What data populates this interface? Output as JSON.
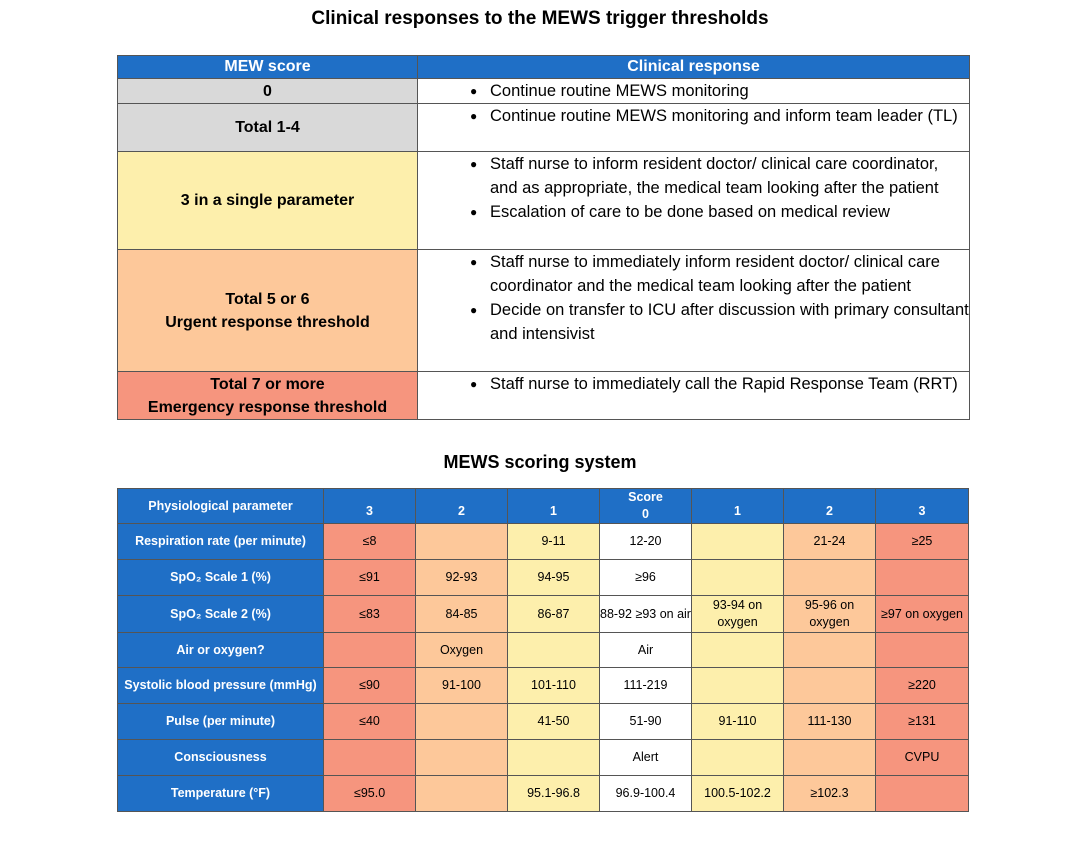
{
  "title": "Clinical responses to the MEWS trigger thresholds",
  "response_table": {
    "headers": {
      "score": "MEW score",
      "response": "Clinical response"
    },
    "rows": [
      {
        "score": [
          "0"
        ],
        "color": "#d9d9d9",
        "responses": [
          "Continue routine MEWS monitoring"
        ]
      },
      {
        "score": [
          "Total 1-4"
        ],
        "color": "#d9d9d9",
        "responses": [
          "Continue routine MEWS monitoring and inform team leader (TL)"
        ]
      },
      {
        "score": [
          "3 in a single parameter"
        ],
        "color": "#fdefac",
        "responses": [
          "Staff nurse to inform resident doctor/ clinical care coordinator, and as appropriate, the medical team looking after the patient",
          "Escalation of care to be done based on medical review"
        ]
      },
      {
        "score": [
          "Total 5 or 6",
          "Urgent response threshold"
        ],
        "color": "#fdc89a",
        "responses": [
          "Staff nurse to immediately inform resident doctor/ clinical care coordinator and the medical team looking after the patient",
          "Decide on transfer to ICU after discussion with primary consultant and intensivist"
        ]
      },
      {
        "score": [
          "Total 7 or more",
          "Emergency response threshold"
        ],
        "color": "#f6957e",
        "responses": [
          "Staff nurse to immediately call the Rapid Response Team (RRT)"
        ]
      }
    ]
  },
  "scoring_title": "MEWS scoring system",
  "scoring_table": {
    "param_header": "Physiological parameter",
    "score_label": "Score",
    "columns": [
      "3",
      "2",
      "1",
      "0",
      "1",
      "2",
      "3"
    ],
    "rows": [
      {
        "param": "Respiration rate (per minute)",
        "cells": [
          "≤8",
          "",
          "9-11",
          "12-20",
          "",
          "21-24",
          "≥25"
        ]
      },
      {
        "param": "SpO₂ Scale 1 (%)",
        "cells": [
          "≤91",
          "92-93",
          "94-95",
          "≥96",
          "",
          "",
          ""
        ]
      },
      {
        "param": "SpO₂ Scale 2 (%)",
        "cells": [
          "≤83",
          "84-85",
          "86-87",
          "88-92 ≥93 on air",
          "93-94 on oxygen",
          "95-96 on oxygen",
          "≥97 on oxygen"
        ]
      },
      {
        "param": "Air or oxygen?",
        "cells": [
          "",
          "Oxygen",
          "",
          "Air",
          "",
          "",
          ""
        ]
      },
      {
        "param": "Systolic blood pressure (mmHg)",
        "cells": [
          "≤90",
          "91-100",
          "101-110",
          "111-219",
          "",
          "",
          "≥220"
        ]
      },
      {
        "param": "Pulse (per minute)",
        "cells": [
          "≤40",
          "",
          "41-50",
          "51-90",
          "91-110",
          "111-130",
          "≥131"
        ]
      },
      {
        "param": "Consciousness",
        "cells": [
          "",
          "",
          "",
          "Alert",
          "",
          "",
          "CVPU"
        ]
      },
      {
        "param": "Temperature (°F)",
        "cells": [
          "≤95.0",
          "",
          "95.1-96.8",
          "96.9-100.4",
          "100.5-102.2",
          "≥102.3",
          ""
        ]
      }
    ]
  }
}
